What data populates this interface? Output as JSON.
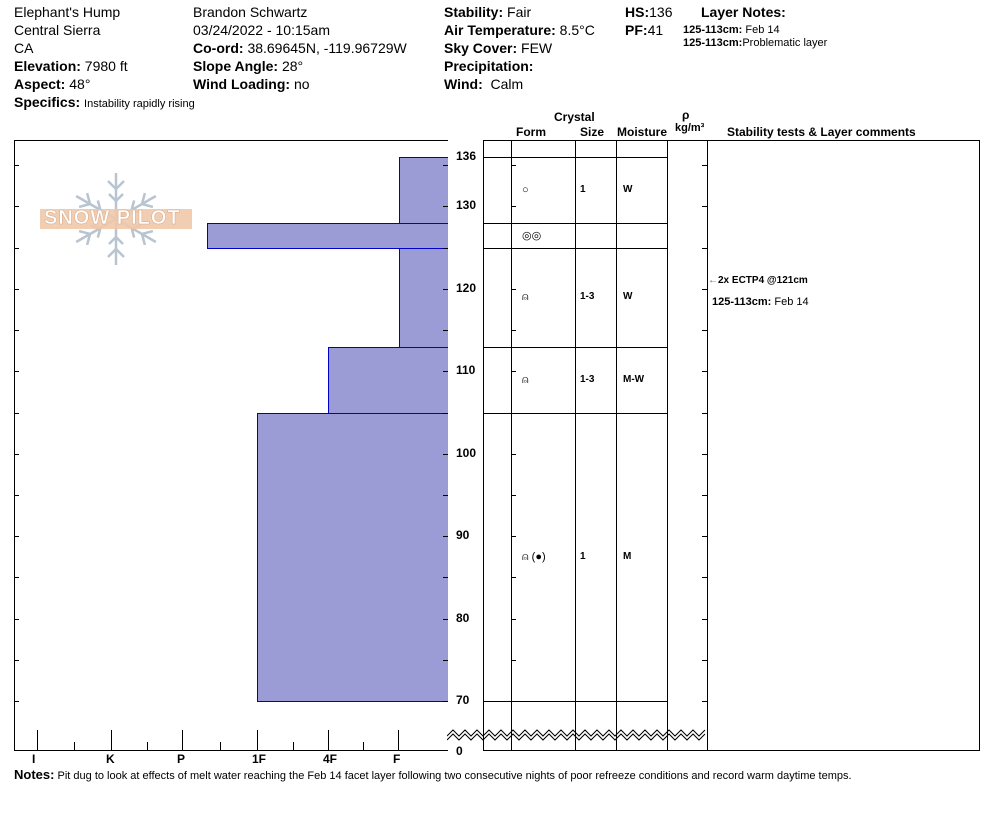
{
  "header": {
    "location": "Elephant's Hump",
    "range": "Central Sierra",
    "state": "CA",
    "elevation_label": "Elevation:",
    "elevation": "7980 ft",
    "aspect_label": "Aspect:",
    "aspect": "48°",
    "specifics_label": "Specifics:",
    "specifics": "Instability rapidly rising",
    "observer": "Brandon Schwartz",
    "datetime": "03/24/2022 - 10:15am",
    "coord_label": "Co-ord:",
    "coord": "38.69645N, -119.96729W",
    "slope_label": "Slope Angle:",
    "slope": "28°",
    "wind_loading_label": "Wind Loading:",
    "wind_loading": "no",
    "stability_label": "Stability:",
    "stability": "Fair",
    "air_temp_label": "Air Temperature:",
    "air_temp": "8.5°C",
    "sky_label": "Sky Cover:",
    "sky": "FEW",
    "precip_label": "Precipitation:",
    "precip": "",
    "wind_label": "Wind:",
    "wind": "Calm",
    "hs_label": "HS:",
    "hs": "136",
    "pf_label": "PF:",
    "pf": "41",
    "layer_notes_label": "Layer Notes:",
    "layer_notes": [
      {
        "range": "125-113cm:",
        "text": "Feb 14"
      },
      {
        "range": "125-113cm:",
        "text": "Problematic layer"
      }
    ]
  },
  "columns": {
    "crystal": "Crystal",
    "form": "Form",
    "size": "Size",
    "moisture": "Moisture",
    "rho": "ρ",
    "density": "kg/m³",
    "comments": "Stability tests & Layer comments"
  },
  "hardness_axis": [
    "I",
    "K",
    "P",
    "1F",
    "4F",
    "F"
  ],
  "depth_ticks": [
    "136",
    "130",
    "120",
    "110",
    "100",
    "90",
    "80",
    "70",
    "0"
  ],
  "logo_text": "SNOW PILOT",
  "layers": [
    {
      "top": 136,
      "bottom": 128,
      "hardness": "F",
      "form": "○",
      "size": "1",
      "moisture": "W"
    },
    {
      "top": 128,
      "bottom": 125,
      "hardness": "P-",
      "form": "◎◎",
      "size": "",
      "moisture": ""
    },
    {
      "top": 125,
      "bottom": 113,
      "hardness": "F",
      "form": "⍝",
      "size": "1-3",
      "moisture": "W"
    },
    {
      "top": 113,
      "bottom": 105,
      "hardness": "4F",
      "form": "⍝",
      "size": "1-3",
      "moisture": "M-W"
    },
    {
      "top": 105,
      "bottom": 70,
      "hardness": "1F",
      "form": "⍝ (●)",
      "size": "1",
      "moisture": "M"
    }
  ],
  "test": "2x ECTP4 @121cm",
  "comment": {
    "range": "125-113cm:",
    "text": "Feb 14"
  },
  "notes_label": "Notes:",
  "notes": "Pit dug to look at effects of melt water reaching the Feb 14 facet layer following two consecutive nights of poor refreeze conditions and record warm daytime temps.",
  "colors": {
    "bar": "#9b9bd6",
    "bar_border": "#0000c8",
    "logo": "#f0c8a8"
  }
}
